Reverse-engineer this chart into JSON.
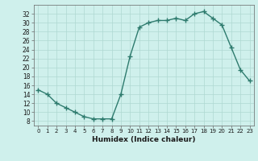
{
  "x": [
    0,
    1,
    2,
    3,
    4,
    5,
    6,
    7,
    8,
    9,
    10,
    11,
    12,
    13,
    14,
    15,
    16,
    17,
    18,
    19,
    20,
    21,
    22,
    23
  ],
  "y": [
    15,
    14,
    12,
    11,
    10,
    9,
    8.5,
    8.5,
    8.5,
    14,
    22.5,
    29,
    30,
    30.5,
    30.5,
    31,
    30.5,
    32,
    32.5,
    31,
    29.5,
    24.5,
    19.5,
    17
  ],
  "line_color": "#2e7b6e",
  "marker_color": "#2e7b6e",
  "bg_color": "#cff0ec",
  "grid_color": "#aed8d2",
  "xlabel": "Humidex (Indice chaleur)",
  "xlim": [
    -0.5,
    23.5
  ],
  "ylim": [
    7,
    34
  ],
  "yticks": [
    8,
    10,
    12,
    14,
    16,
    18,
    20,
    22,
    24,
    26,
    28,
    30,
    32
  ],
  "xticks": [
    0,
    1,
    2,
    3,
    4,
    5,
    6,
    7,
    8,
    9,
    10,
    11,
    12,
    13,
    14,
    15,
    16,
    17,
    18,
    19,
    20,
    21,
    22,
    23
  ],
  "xtick_labels": [
    "0",
    "1",
    "2",
    "3",
    "4",
    "5",
    "6",
    "7",
    "8",
    "9",
    "10",
    "11",
    "12",
    "13",
    "14",
    "15",
    "16",
    "17",
    "18",
    "19",
    "20",
    "21",
    "22",
    "23"
  ],
  "marker_size": 2.5,
  "line_width": 1.0
}
